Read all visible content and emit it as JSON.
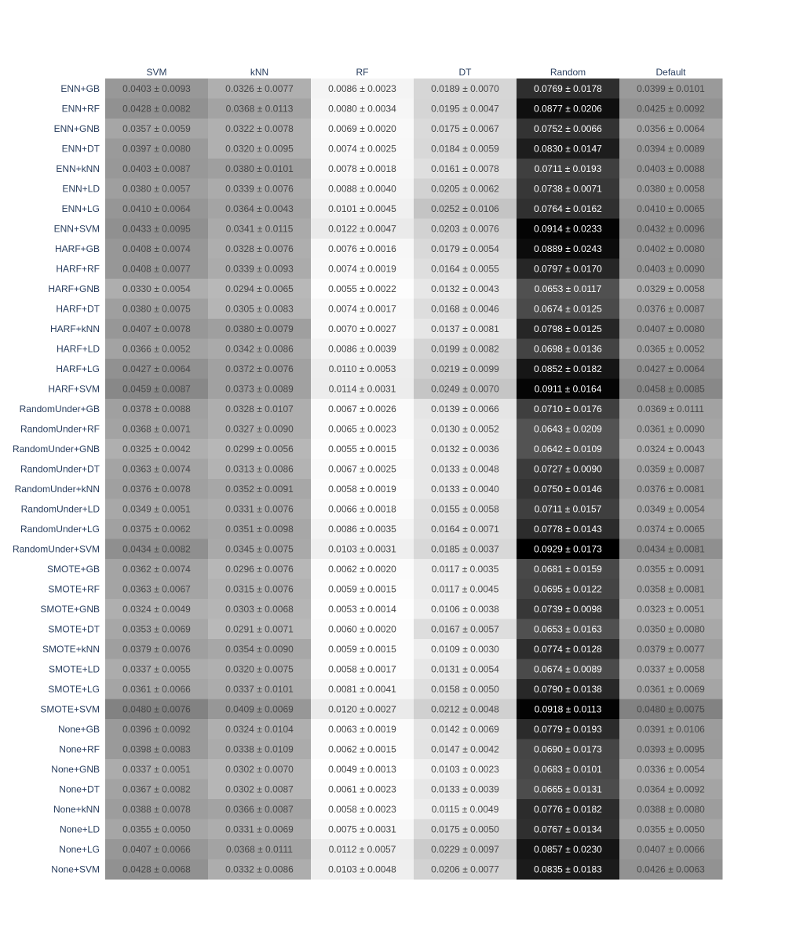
{
  "chart_data": {
    "type": "heatmap",
    "title": "",
    "xlabel": "",
    "ylabel": "",
    "columns": [
      "SVM",
      "kNN",
      "RF",
      "DT",
      "Random",
      "Default"
    ],
    "rows": [
      "ENN+GB",
      "ENN+RF",
      "ENN+GNB",
      "ENN+DT",
      "ENN+kNN",
      "ENN+LD",
      "ENN+LG",
      "ENN+SVM",
      "HARF+GB",
      "HARF+RF",
      "HARF+GNB",
      "HARF+DT",
      "HARF+kNN",
      "HARF+LD",
      "HARF+LG",
      "HARF+SVM",
      "RandomUnder+GB",
      "RandomUnder+RF",
      "RandomUnder+GNB",
      "RandomUnder+DT",
      "RandomUnder+kNN",
      "RandomUnder+LD",
      "RandomUnder+LG",
      "RandomUnder+SVM",
      "SMOTE+GB",
      "SMOTE+RF",
      "SMOTE+GNB",
      "SMOTE+DT",
      "SMOTE+kNN",
      "SMOTE+LD",
      "SMOTE+LG",
      "SMOTE+SVM",
      "None+GB",
      "None+RF",
      "None+GNB",
      "None+DT",
      "None+kNN",
      "None+LD",
      "None+LG",
      "None+SVM"
    ],
    "cells": [
      [
        "0.0403 ± 0.0093",
        "0.0326 ± 0.0077",
        "0.0086 ± 0.0023",
        "0.0189 ± 0.0070",
        "0.0769 ± 0.0178",
        "0.0399 ± 0.0101"
      ],
      [
        "0.0428 ± 0.0082",
        "0.0368 ± 0.0113",
        "0.0080 ± 0.0034",
        "0.0195 ± 0.0047",
        "0.0877 ± 0.0206",
        "0.0425 ± 0.0092"
      ],
      [
        "0.0357 ± 0.0059",
        "0.0322 ± 0.0078",
        "0.0069 ± 0.0020",
        "0.0175 ± 0.0067",
        "0.0752 ± 0.0066",
        "0.0356 ± 0.0064"
      ],
      [
        "0.0397 ± 0.0080",
        "0.0320 ± 0.0095",
        "0.0074 ± 0.0025",
        "0.0184 ± 0.0059",
        "0.0830 ± 0.0147",
        "0.0394 ± 0.0089"
      ],
      [
        "0.0403 ± 0.0087",
        "0.0380 ± 0.0101",
        "0.0078 ± 0.0018",
        "0.0161 ± 0.0078",
        "0.0711 ± 0.0193",
        "0.0403 ± 0.0088"
      ],
      [
        "0.0380 ± 0.0057",
        "0.0339 ± 0.0076",
        "0.0088 ± 0.0040",
        "0.0205 ± 0.0062",
        "0.0738 ± 0.0071",
        "0.0380 ± 0.0058"
      ],
      [
        "0.0410 ± 0.0064",
        "0.0364 ± 0.0043",
        "0.0101 ± 0.0045",
        "0.0252 ± 0.0106",
        "0.0764 ± 0.0162",
        "0.0410 ± 0.0065"
      ],
      [
        "0.0433 ± 0.0095",
        "0.0341 ± 0.0115",
        "0.0122 ± 0.0047",
        "0.0203 ± 0.0076",
        "0.0914 ± 0.0233",
        "0.0432 ± 0.0096"
      ],
      [
        "0.0408 ± 0.0074",
        "0.0328 ± 0.0076",
        "0.0076 ± 0.0016",
        "0.0179 ± 0.0054",
        "0.0889 ± 0.0243",
        "0.0402 ± 0.0080"
      ],
      [
        "0.0408 ± 0.0077",
        "0.0339 ± 0.0093",
        "0.0074 ± 0.0019",
        "0.0164 ± 0.0055",
        "0.0797 ± 0.0170",
        "0.0403 ± 0.0090"
      ],
      [
        "0.0330 ± 0.0054",
        "0.0294 ± 0.0065",
        "0.0055 ± 0.0022",
        "0.0132 ± 0.0043",
        "0.0653 ± 0.0117",
        "0.0329 ± 0.0058"
      ],
      [
        "0.0380 ± 0.0075",
        "0.0305 ± 0.0083",
        "0.0074 ± 0.0017",
        "0.0168 ± 0.0046",
        "0.0674 ± 0.0125",
        "0.0376 ± 0.0087"
      ],
      [
        "0.0407 ± 0.0078",
        "0.0380 ± 0.0079",
        "0.0070 ± 0.0027",
        "0.0137 ± 0.0081",
        "0.0798 ± 0.0125",
        "0.0407 ± 0.0080"
      ],
      [
        "0.0366 ± 0.0052",
        "0.0342 ± 0.0086",
        "0.0086 ± 0.0039",
        "0.0199 ± 0.0082",
        "0.0698 ± 0.0136",
        "0.0365 ± 0.0052"
      ],
      [
        "0.0427 ± 0.0064",
        "0.0372 ± 0.0076",
        "0.0110 ± 0.0053",
        "0.0219 ± 0.0099",
        "0.0852 ± 0.0182",
        "0.0427 ± 0.0064"
      ],
      [
        "0.0459 ± 0.0087",
        "0.0373 ± 0.0089",
        "0.0114 ± 0.0031",
        "0.0249 ± 0.0070",
        "0.0911 ± 0.0164",
        "0.0458 ± 0.0085"
      ],
      [
        "0.0378 ± 0.0088",
        "0.0328 ± 0.0107",
        "0.0067 ± 0.0026",
        "0.0139 ± 0.0066",
        "0.0710 ± 0.0176",
        "0.0369 ± 0.0111"
      ],
      [
        "0.0368 ± 0.0071",
        "0.0327 ± 0.0090",
        "0.0065 ± 0.0023",
        "0.0130 ± 0.0052",
        "0.0643 ± 0.0209",
        "0.0361 ± 0.0090"
      ],
      [
        "0.0325 ± 0.0042",
        "0.0299 ± 0.0056",
        "0.0055 ± 0.0015",
        "0.0132 ± 0.0036",
        "0.0642 ± 0.0109",
        "0.0324 ± 0.0043"
      ],
      [
        "0.0363 ± 0.0074",
        "0.0313 ± 0.0086",
        "0.0067 ± 0.0025",
        "0.0133 ± 0.0048",
        "0.0727 ± 0.0090",
        "0.0359 ± 0.0087"
      ],
      [
        "0.0376 ± 0.0078",
        "0.0352 ± 0.0091",
        "0.0058 ± 0.0019",
        "0.0133 ± 0.0040",
        "0.0750 ± 0.0146",
        "0.0376 ± 0.0081"
      ],
      [
        "0.0349 ± 0.0051",
        "0.0331 ± 0.0076",
        "0.0066 ± 0.0018",
        "0.0155 ± 0.0058",
        "0.0711 ± 0.0157",
        "0.0349 ± 0.0054"
      ],
      [
        "0.0375 ± 0.0062",
        "0.0351 ± 0.0098",
        "0.0086 ± 0.0035",
        "0.0164 ± 0.0071",
        "0.0778 ± 0.0143",
        "0.0374 ± 0.0065"
      ],
      [
        "0.0434 ± 0.0082",
        "0.0345 ± 0.0075",
        "0.0103 ± 0.0031",
        "0.0185 ± 0.0037",
        "0.0929 ± 0.0173",
        "0.0434 ± 0.0081"
      ],
      [
        "0.0362 ± 0.0074",
        "0.0296 ± 0.0076",
        "0.0062 ± 0.0020",
        "0.0117 ± 0.0035",
        "0.0681 ± 0.0159",
        "0.0355 ± 0.0091"
      ],
      [
        "0.0363 ± 0.0067",
        "0.0315 ± 0.0076",
        "0.0059 ± 0.0015",
        "0.0117 ± 0.0045",
        "0.0695 ± 0.0122",
        "0.0358 ± 0.0081"
      ],
      [
        "0.0324 ± 0.0049",
        "0.0303 ± 0.0068",
        "0.0053 ± 0.0014",
        "0.0106 ± 0.0038",
        "0.0739 ± 0.0098",
        "0.0323 ± 0.0051"
      ],
      [
        "0.0353 ± 0.0069",
        "0.0291 ± 0.0071",
        "0.0060 ± 0.0020",
        "0.0167 ± 0.0057",
        "0.0653 ± 0.0163",
        "0.0350 ± 0.0080"
      ],
      [
        "0.0379 ± 0.0076",
        "0.0354 ± 0.0090",
        "0.0059 ± 0.0015",
        "0.0109 ± 0.0030",
        "0.0774 ± 0.0128",
        "0.0379 ± 0.0077"
      ],
      [
        "0.0337 ± 0.0055",
        "0.0320 ± 0.0075",
        "0.0058 ± 0.0017",
        "0.0131 ± 0.0054",
        "0.0674 ± 0.0089",
        "0.0337 ± 0.0058"
      ],
      [
        "0.0361 ± 0.0066",
        "0.0337 ± 0.0101",
        "0.0081 ± 0.0041",
        "0.0158 ± 0.0050",
        "0.0790 ± 0.0138",
        "0.0361 ± 0.0069"
      ],
      [
        "0.0480 ± 0.0076",
        "0.0409 ± 0.0069",
        "0.0120 ± 0.0027",
        "0.0212 ± 0.0048",
        "0.0918 ± 0.0113",
        "0.0480 ± 0.0075"
      ],
      [
        "0.0396 ± 0.0092",
        "0.0324 ± 0.0104",
        "0.0063 ± 0.0019",
        "0.0142 ± 0.0069",
        "0.0779 ± 0.0193",
        "0.0391 ± 0.0106"
      ],
      [
        "0.0398 ± 0.0083",
        "0.0338 ± 0.0109",
        "0.0062 ± 0.0015",
        "0.0147 ± 0.0042",
        "0.0690 ± 0.0173",
        "0.0393 ± 0.0095"
      ],
      [
        "0.0337 ± 0.0051",
        "0.0302 ± 0.0070",
        "0.0049 ± 0.0013",
        "0.0103 ± 0.0023",
        "0.0683 ± 0.0101",
        "0.0336 ± 0.0054"
      ],
      [
        "0.0367 ± 0.0082",
        "0.0302 ± 0.0087",
        "0.0061 ± 0.0023",
        "0.0133 ± 0.0039",
        "0.0665 ± 0.0131",
        "0.0364 ± 0.0092"
      ],
      [
        "0.0388 ± 0.0078",
        "0.0366 ± 0.0087",
        "0.0058 ± 0.0023",
        "0.0115 ± 0.0049",
        "0.0776 ± 0.0182",
        "0.0388 ± 0.0080"
      ],
      [
        "0.0355 ± 0.0050",
        "0.0331 ± 0.0069",
        "0.0075 ± 0.0031",
        "0.0175 ± 0.0050",
        "0.0767 ± 0.0134",
        "0.0355 ± 0.0050"
      ],
      [
        "0.0407 ± 0.0066",
        "0.0368 ± 0.0111",
        "0.0112 ± 0.0057",
        "0.0229 ± 0.0097",
        "0.0857 ± 0.0230",
        "0.0407 ± 0.0066"
      ],
      [
        "0.0428 ± 0.0068",
        "0.0332 ± 0.0086",
        "0.0103 ± 0.0048",
        "0.0206 ± 0.0077",
        "0.0835 ± 0.0183",
        "0.0426 ± 0.0063"
      ]
    ],
    "colorscale": {
      "low": "#ffffff",
      "high": "#000000"
    },
    "text_colors": {
      "dark": "#444444",
      "light": "#ffffff"
    },
    "legend": "none",
    "grid": false
  }
}
